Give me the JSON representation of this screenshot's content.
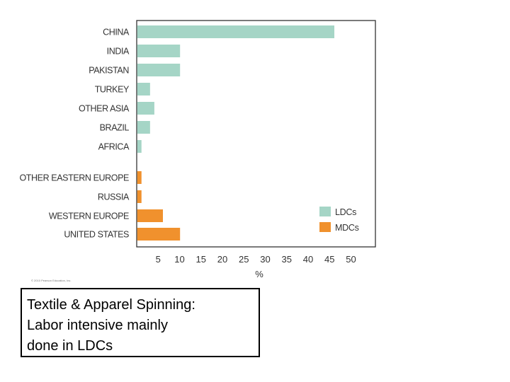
{
  "chart_data": {
    "type": "bar",
    "orientation": "horizontal",
    "categories": [
      "CHINA",
      "INDIA",
      "PAKISTAN",
      "TURKEY",
      "OTHER ASIA",
      "BRAZIL",
      "AFRICA",
      "OTHER EASTERN EUROPE",
      "RUSSIA",
      "WESTERN EUROPE",
      "UNITED STATES"
    ],
    "groups": [
      "LDCs",
      "LDCs",
      "LDCs",
      "LDCs",
      "LDCs",
      "LDCs",
      "LDCs",
      "MDCs",
      "MDCs",
      "MDCs",
      "MDCs"
    ],
    "values": [
      46,
      10,
      10,
      3,
      4,
      3,
      1,
      1,
      1,
      6,
      10
    ],
    "xlabel": "%",
    "xlim": [
      0,
      52
    ],
    "xticks": [
      5,
      10,
      15,
      20,
      25,
      30,
      35,
      40,
      45,
      50
    ],
    "grid": false,
    "legend": {
      "placement": "bottom-right",
      "entries": [
        {
          "label": "LDCs",
          "color": "#a5d5c6"
        },
        {
          "label": "MDCs",
          "color": "#f0912d"
        }
      ]
    },
    "colors": {
      "LDCs": "#a5d5c6",
      "MDCs": "#f0912d"
    }
  },
  "copyright": "© 2010 Pearson Education, Inc.",
  "caption": {
    "lines": [
      "Textile & Apparel Spinning:",
      "Labor intensive mainly",
      "done in LDCs"
    ]
  }
}
